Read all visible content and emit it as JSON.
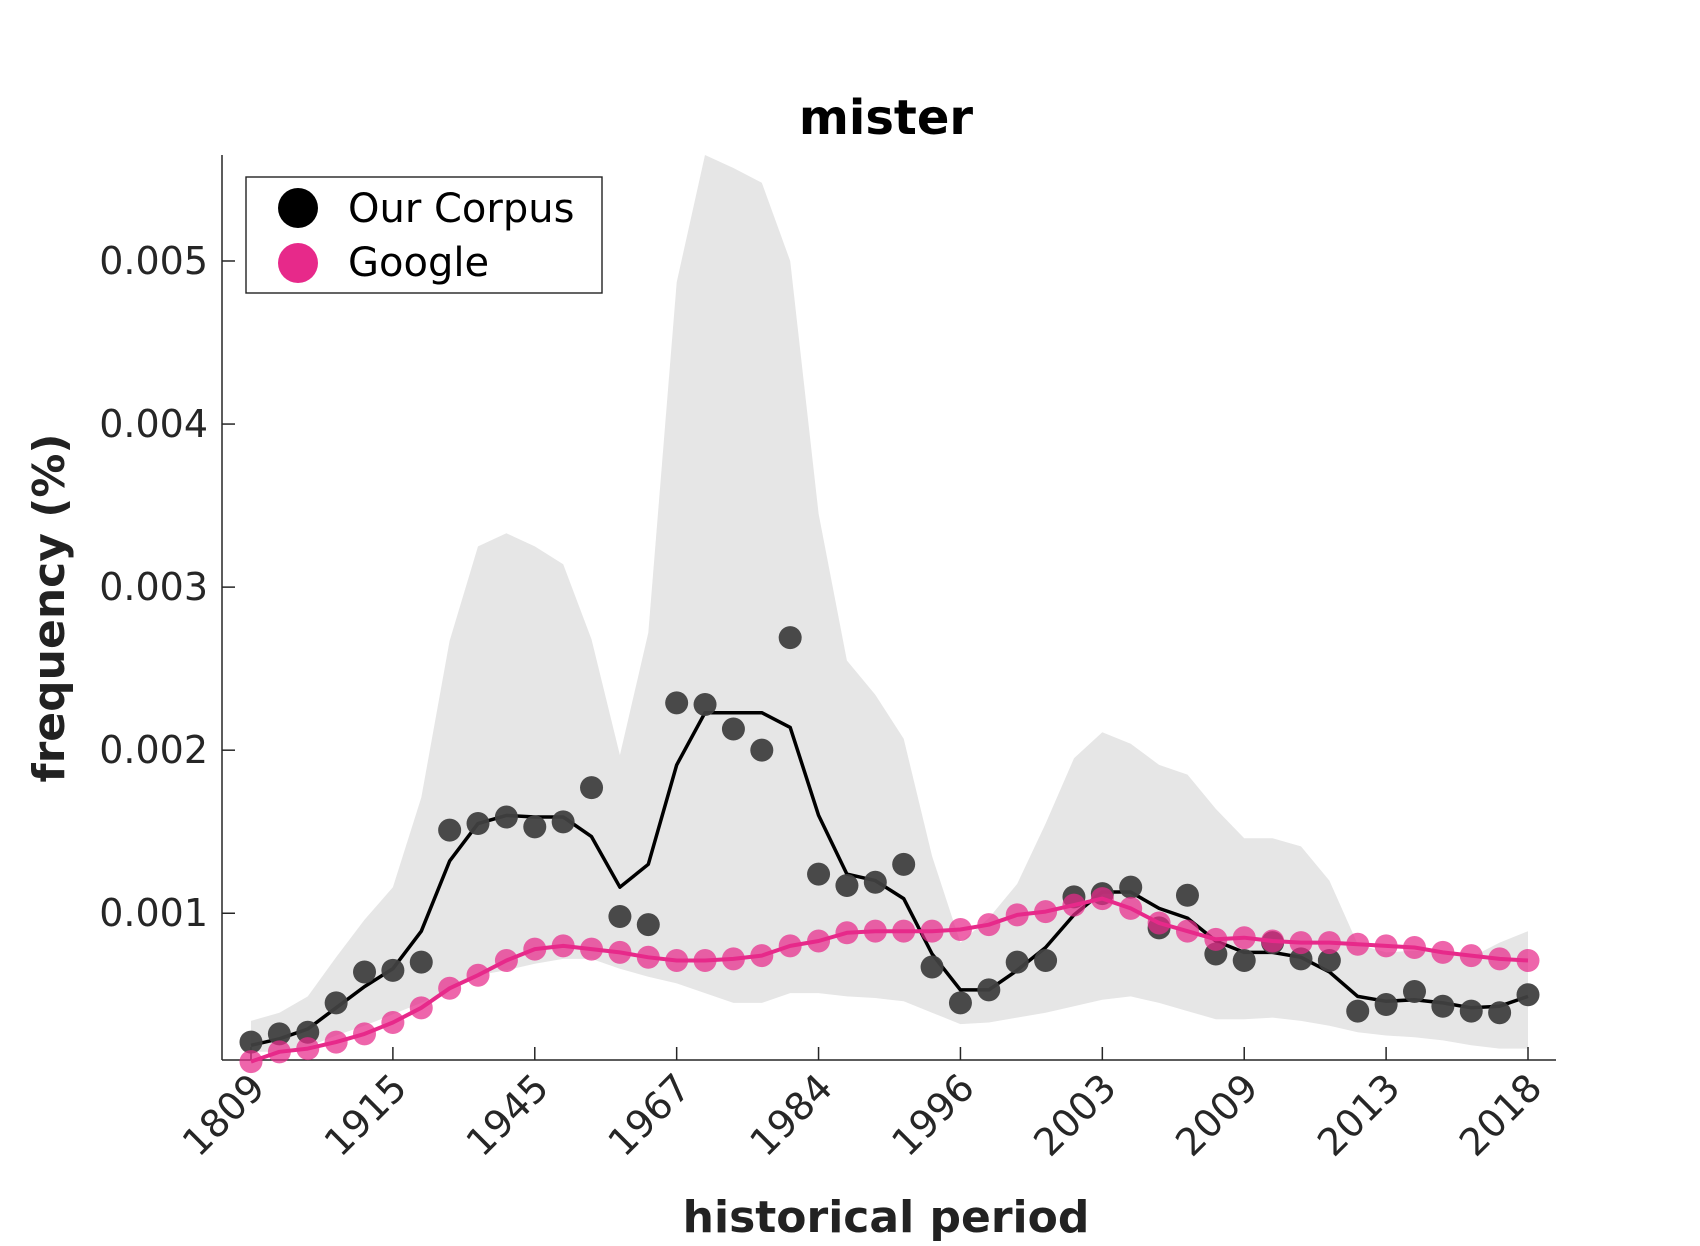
{
  "chart_data": {
    "type": "scatter",
    "title": "mister",
    "xlabel": "historical period",
    "ylabel": "frequency (%)",
    "x_index_range": [
      1,
      46
    ],
    "x_tick_positions": [
      1,
      6,
      11,
      16,
      21,
      26,
      31,
      36,
      41,
      46
    ],
    "x_tick_labels": [
      "1809",
      "1915",
      "1945",
      "1967",
      "1984",
      "1996",
      "2003",
      "2009",
      "2013",
      "2018"
    ],
    "ylim": [
      0.0001,
      0.00565
    ],
    "y_ticks": [
      0.001,
      0.002,
      0.003,
      0.004,
      0.005
    ],
    "y_tick_labels": [
      "0.001",
      "0.002",
      "0.003",
      "0.004",
      "0.005"
    ],
    "grid": false,
    "legend_position": "top-left",
    "colors": {
      "corpus": "#000000",
      "corpus_points": "#404040",
      "google": "#e7298a",
      "band": "#e6e6e6"
    },
    "series": [
      {
        "name": "Our Corpus",
        "color": "#000000",
        "points": [
          0.00021,
          0.00026,
          0.00027,
          0.00045,
          0.00064,
          0.00065,
          0.0007,
          0.00151,
          0.00155,
          0.00159,
          0.00153,
          0.00156,
          0.00177,
          0.00098,
          0.00093,
          0.00229,
          0.00228,
          0.00213,
          0.002,
          0.00269,
          0.00124,
          0.00117,
          0.00119,
          0.0013,
          0.00067,
          0.00045,
          0.00053,
          0.0007,
          0.00071,
          0.0011,
          0.00112,
          0.00116,
          0.00091,
          0.00111,
          0.00075,
          0.00071,
          0.00082,
          0.00072,
          0.00071,
          0.0004,
          0.00044,
          0.00052,
          0.00043,
          0.0004,
          0.00039,
          0.0005
        ],
        "smooth": [
          0.00019,
          0.00023,
          0.00029,
          0.00042,
          0.00055,
          0.00066,
          0.00089,
          0.00132,
          0.00155,
          0.0016,
          0.00159,
          0.00159,
          0.00147,
          0.00116,
          0.0013,
          0.00191,
          0.00223,
          0.00223,
          0.00223,
          0.00214,
          0.0016,
          0.00124,
          0.0012,
          0.00109,
          0.00075,
          0.00053,
          0.00053,
          0.00065,
          0.00079,
          0.00099,
          0.00113,
          0.00113,
          0.00103,
          0.00097,
          0.00083,
          0.00076,
          0.00076,
          0.00073,
          0.00064,
          0.00049,
          0.00046,
          0.00047,
          0.00045,
          0.00042,
          0.00043,
          0.00049
        ]
      },
      {
        "name": "Google",
        "color": "#e7298a",
        "points": [
          9e-05,
          0.00015,
          0.00017,
          0.00021,
          0.00026,
          0.00033,
          0.00042,
          0.00054,
          0.00062,
          0.00071,
          0.00078,
          0.0008,
          0.00078,
          0.00076,
          0.00073,
          0.00071,
          0.00071,
          0.00072,
          0.00074,
          0.0008,
          0.00083,
          0.00088,
          0.00089,
          0.00089,
          0.00089,
          0.0009,
          0.00093,
          0.00099,
          0.00101,
          0.00105,
          0.00109,
          0.00103,
          0.00094,
          0.00089,
          0.00084,
          0.00085,
          0.00083,
          0.00082,
          0.00082,
          0.00081,
          0.0008,
          0.00079,
          0.00076,
          0.00074,
          0.00072,
          0.00071
        ]
      }
    ],
    "band": {
      "upper": [
        0.00034,
        0.00039,
        0.00049,
        0.00073,
        0.00096,
        0.00116,
        0.00171,
        0.00267,
        0.00325,
        0.00333,
        0.00325,
        0.00314,
        0.00268,
        0.00197,
        0.00272,
        0.00487,
        0.00565,
        0.00557,
        0.00548,
        0.005,
        0.00345,
        0.00255,
        0.00234,
        0.00207,
        0.00135,
        0.00082,
        0.00097,
        0.00118,
        0.00155,
        0.00195,
        0.00211,
        0.00204,
        0.00191,
        0.00185,
        0.00164,
        0.00146,
        0.00146,
        0.00141,
        0.0012,
        0.00081,
        0.00076,
        0.00077,
        0.00076,
        0.00073,
        0.00082,
        0.00089
      ],
      "lower": [
        0.00015,
        0.00015,
        0.00018,
        0.00025,
        0.00031,
        0.00038,
        0.00045,
        0.00053,
        0.00062,
        0.00065,
        0.00069,
        0.00072,
        0.00072,
        0.00066,
        0.00061,
        0.00057,
        0.00051,
        0.00045,
        0.00045,
        0.00051,
        0.00051,
        0.00049,
        0.00048,
        0.00046,
        0.00039,
        0.00032,
        0.00033,
        0.00036,
        0.00039,
        0.00043,
        0.00047,
        0.00049,
        0.00045,
        0.0004,
        0.00035,
        0.00035,
        0.00036,
        0.00034,
        0.00031,
        0.00027,
        0.00025,
        0.00024,
        0.00022,
        0.00019,
        0.00017,
        0.00017
      ]
    }
  }
}
